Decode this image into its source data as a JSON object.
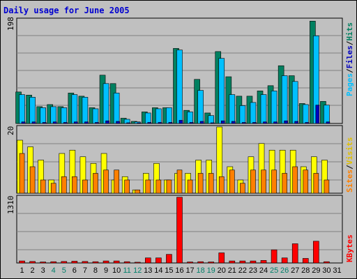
{
  "chart_data": [
    {
      "type": "bar",
      "title": "Daily usage for June 2005",
      "panel": "top",
      "ymax": 198,
      "y_tick_label": "198",
      "right_label": [
        "Pages",
        "Files",
        "Hits"
      ],
      "series": [
        {
          "name": "Hits",
          "color": "#008060",
          "values": [
            60,
            54,
            32,
            36,
            32,
            58,
            52,
            30,
            92,
            76,
            10,
            4,
            22,
            30,
            30,
            143,
            25,
            84,
            20,
            137,
            89,
            52,
            52,
            62,
            72,
            110,
            91,
            38,
            195,
            42,
            0
          ]
        },
        {
          "name": "Files",
          "color": "#00c0ff",
          "values": [
            55,
            50,
            30,
            32,
            30,
            55,
            50,
            28,
            76,
            58,
            8,
            3,
            20,
            28,
            30,
            140,
            22,
            63,
            15,
            124,
            55,
            34,
            40,
            55,
            62,
            91,
            80,
            36,
            167,
            35,
            0
          ]
        },
        {
          "name": "Pages",
          "color": "#0000c0",
          "values": [
            3,
            3,
            2,
            3,
            2,
            3,
            3,
            2,
            5,
            4,
            1,
            1,
            2,
            2,
            2,
            6,
            2,
            4,
            1,
            5,
            4,
            2,
            2,
            3,
            3,
            5,
            4,
            2,
            35,
            3,
            0
          ]
        }
      ]
    },
    {
      "type": "bar",
      "panel": "middle",
      "ymax": 20,
      "y_tick_label": "20",
      "right_label": [
        "Sites",
        "Visits"
      ],
      "series": [
        {
          "name": "Visits",
          "color": "#ffff00",
          "values": [
            16,
            14,
            10,
            4,
            12,
            13,
            11,
            9,
            12,
            4,
            5,
            1,
            6,
            9,
            4,
            6,
            6,
            10,
            10,
            20,
            8,
            4,
            11,
            15,
            13,
            13,
            13,
            8,
            11,
            10,
            0
          ]
        },
        {
          "name": "Sites",
          "color": "#ff8000",
          "values": [
            12,
            8,
            4,
            3,
            5,
            5,
            4,
            6,
            7,
            7,
            4,
            1,
            4,
            4,
            4,
            7,
            4,
            6,
            6,
            5,
            7,
            3,
            7,
            7,
            7,
            6,
            8,
            7,
            6,
            4,
            0
          ]
        }
      ]
    },
    {
      "type": "bar",
      "panel": "bottom",
      "ymax": 1310,
      "y_tick_label": "1310",
      "right_label": [
        "KBytes"
      ],
      "series": [
        {
          "name": "KBytes",
          "color": "#ff0000",
          "values": [
            40,
            30,
            20,
            25,
            30,
            35,
            30,
            25,
            40,
            40,
            25,
            15,
            100,
            100,
            170,
            1300,
            20,
            25,
            20,
            200,
            40,
            40,
            40,
            50,
            260,
            100,
            380,
            90,
            430,
            25,
            0
          ]
        }
      ]
    }
  ],
  "x_days": [
    "1",
    "2",
    "3",
    "4",
    "5",
    "6",
    "7",
    "8",
    "9",
    "10",
    "11",
    "12",
    "13",
    "14",
    "15",
    "16",
    "17",
    "18",
    "19",
    "20",
    "21",
    "22",
    "23",
    "24",
    "25",
    "26",
    "27",
    "28",
    "29",
    "30",
    "31"
  ],
  "weekend_days": [
    4,
    5,
    11,
    12,
    18,
    19,
    25,
    26
  ],
  "colors": {
    "weekday": "#000000",
    "weekend": "#00806b",
    "panel_bg": "#c0c0c0",
    "grid": "#808080"
  }
}
